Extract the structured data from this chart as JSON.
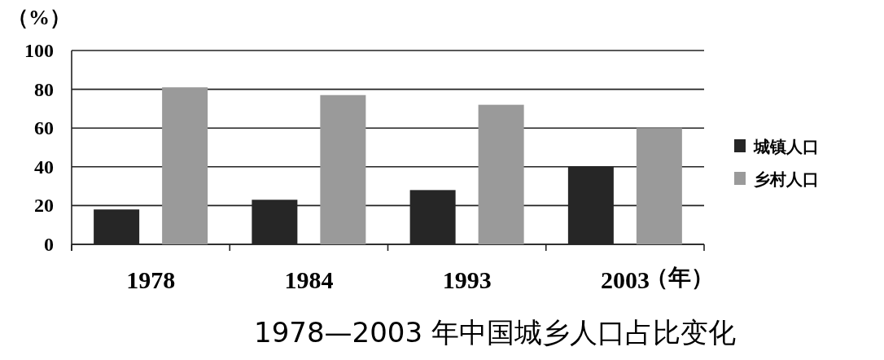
{
  "chart_data": {
    "type": "bar",
    "title": "1978—2003 年中国城乡人口占比变化",
    "ylabel": "（%）",
    "xlabel": "（年）",
    "categories": [
      "1978",
      "1984",
      "1993",
      "2003"
    ],
    "series": [
      {
        "name": "城镇人口",
        "color": "#262626",
        "values": [
          18,
          23,
          28,
          40
        ]
      },
      {
        "name": "乡村人口",
        "color": "#9a9a9a",
        "values": [
          81,
          77,
          72,
          60
        ]
      }
    ],
    "ylim": [
      0,
      100
    ],
    "yticks": [
      0,
      20,
      40,
      60,
      80,
      100
    ],
    "grid": "y",
    "legend": "right"
  }
}
